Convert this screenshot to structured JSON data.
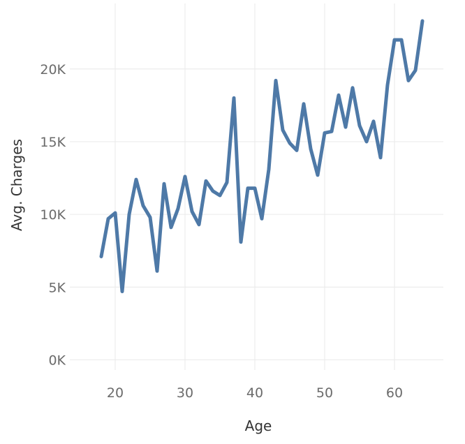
{
  "chart_data": {
    "type": "line",
    "xlabel": "Age",
    "ylabel": "Avg. Charges",
    "xlim": [
      13.5,
      67
    ],
    "ylim": [
      -700,
      24500
    ],
    "xticks": [
      20,
      30,
      40,
      50,
      60
    ],
    "xtick_labels": [
      "20",
      "30",
      "40",
      "50",
      "60"
    ],
    "yticks": [
      0,
      5000,
      10000,
      15000,
      20000
    ],
    "ytick_labels": [
      "0K",
      "5K",
      "10K",
      "15K",
      "20K"
    ],
    "grid": true,
    "legend": "none",
    "line_color": "#4e79a7",
    "series": [
      {
        "x": [
          18,
          19,
          20,
          21,
          22,
          23,
          24,
          25,
          26,
          27,
          28,
          29,
          30,
          31,
          32,
          33,
          34,
          35,
          36,
          37,
          38,
          39,
          40,
          41,
          42,
          43,
          44,
          45,
          46,
          47,
          48,
          49,
          50,
          51,
          52,
          53,
          54,
          55,
          56,
          57,
          58,
          59,
          60,
          61,
          62,
          63,
          64
        ],
        "values": [
          7100,
          9700,
          10100,
          4700,
          10000,
          12400,
          10600,
          9800,
          6100,
          12100,
          9100,
          10400,
          12600,
          10200,
          9300,
          12300,
          11600,
          11300,
          12200,
          18000,
          8100,
          11800,
          11800,
          9700,
          13100,
          19200,
          15800,
          14900,
          14400,
          17600,
          14500,
          12700,
          15600,
          15700,
          18200,
          16000,
          18700,
          16100,
          15000,
          16400,
          13900,
          18900,
          22000,
          22000,
          19200,
          19900,
          23300
        ]
      }
    ]
  }
}
